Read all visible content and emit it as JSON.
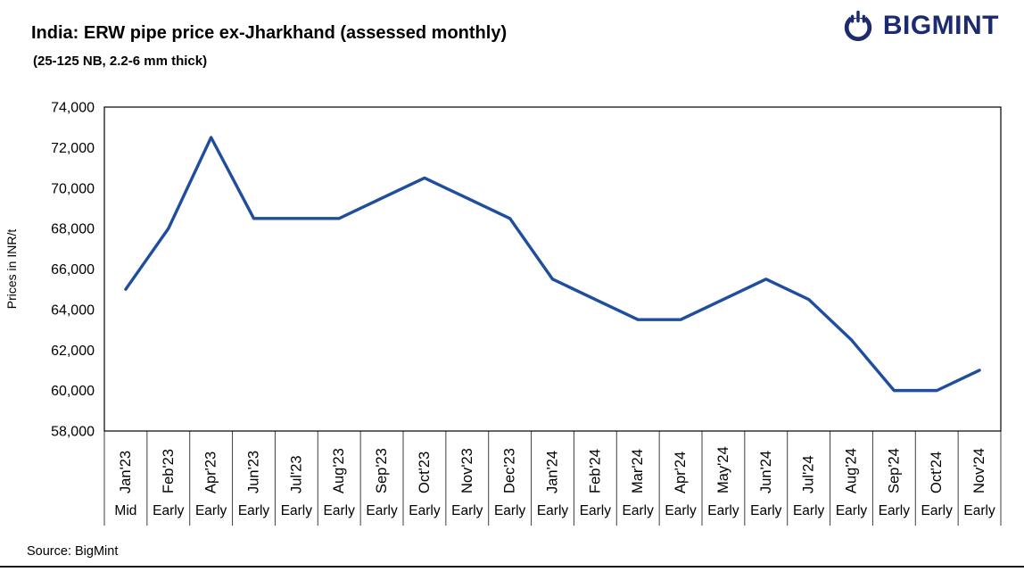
{
  "header": {
    "title": "India: ERW pipe price ex-Jharkhand (assessed monthly)",
    "subtitle": "(25-125 NB, 2.2-6 mm thick)"
  },
  "logo": {
    "text": "BIGMINT",
    "color": "#1c2b6e"
  },
  "footer": {
    "source": "Source: BigMint"
  },
  "chart_data": {
    "type": "line",
    "title": "India: ERW pipe price ex-Jharkhand (assessed monthly)",
    "subtitle": "(25-125 NB, 2.2-6 mm thick)",
    "ylabel": "Prices in INR/t",
    "ylim": [
      58000,
      74000
    ],
    "ytick_step": 2000,
    "yticks": [
      58000,
      60000,
      62000,
      64000,
      66000,
      68000,
      70000,
      72000,
      74000
    ],
    "line_color": "#1F4E9F",
    "grid": false,
    "legend": "none",
    "categories": [
      {
        "month": "Jan'23",
        "period": "Mid"
      },
      {
        "month": "Feb'23",
        "period": "Early"
      },
      {
        "month": "Apr'23",
        "period": "Early"
      },
      {
        "month": "Jun'23",
        "period": "Early"
      },
      {
        "month": "Jul'23",
        "period": "Early"
      },
      {
        "month": "Aug'23",
        "period": "Early"
      },
      {
        "month": "Sep'23",
        "period": "Early"
      },
      {
        "month": "Oct'23",
        "period": "Early"
      },
      {
        "month": "Nov'23",
        "period": "Early"
      },
      {
        "month": "Dec'23",
        "period": "Early"
      },
      {
        "month": "Jan'24",
        "period": "Early"
      },
      {
        "month": "Feb'24",
        "period": "Early"
      },
      {
        "month": "Mar'24",
        "period": "Early"
      },
      {
        "month": "Apr'24",
        "period": "Early"
      },
      {
        "month": "May'24",
        "period": "Early"
      },
      {
        "month": "Jun'24",
        "period": "Early"
      },
      {
        "month": "Jul'24",
        "period": "Early"
      },
      {
        "month": "Aug'24",
        "period": "Early"
      },
      {
        "month": "Sep'24",
        "period": "Early"
      },
      {
        "month": "Oct'24",
        "period": "Early"
      },
      {
        "month": "Nov'24",
        "period": "Early"
      }
    ],
    "values": [
      65000,
      68000,
      72500,
      68500,
      68500,
      68500,
      69500,
      70500,
      69500,
      68500,
      65500,
      64500,
      63500,
      63500,
      64500,
      65500,
      64500,
      62500,
      60000,
      60000,
      61000
    ]
  }
}
